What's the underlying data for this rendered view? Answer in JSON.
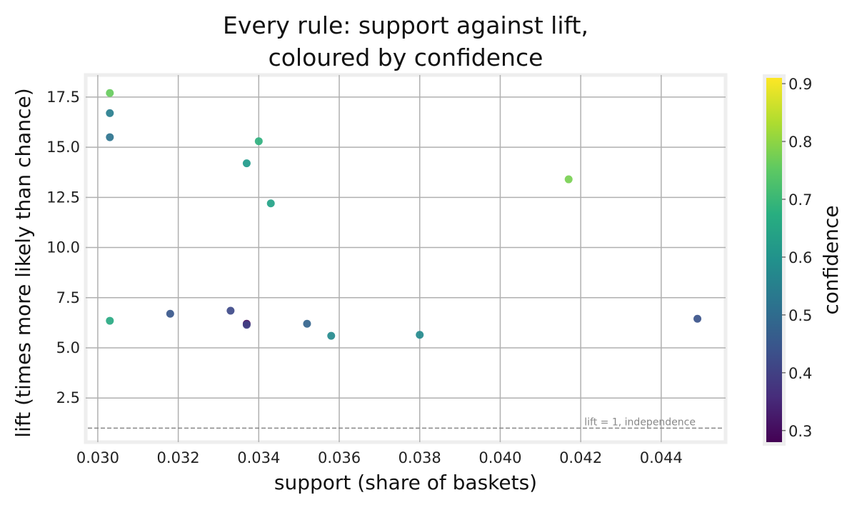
{
  "chart_data": {
    "type": "scatter",
    "title": [
      "Every rule: support against lift,",
      "coloured by confidence"
    ],
    "xlabel": "support (share of baskets)",
    "ylabel": "lift (times more likely than chance)",
    "xlim": [
      0.0297,
      0.0456
    ],
    "ylim": [
      0.3,
      18.6
    ],
    "xticks": [
      "0.030",
      "0.032",
      "0.034",
      "0.036",
      "0.038",
      "0.040",
      "0.042",
      "0.044"
    ],
    "yticks": [
      "2.5",
      "5.0",
      "7.5",
      "10.0",
      "12.5",
      "15.0",
      "17.5"
    ],
    "grid": true,
    "colorbar": {
      "label": "confidence",
      "range": [
        0.28,
        0.91
      ],
      "ticks": [
        "0.3",
        "0.4",
        "0.5",
        "0.6",
        "0.7",
        "0.8",
        "0.9"
      ],
      "colormap": "viridis"
    },
    "reference_line": {
      "y": 1.0,
      "style": "dashed",
      "label": "lift = 1, independence"
    },
    "points": [
      {
        "x": 0.0303,
        "y": 17.7,
        "confidence": 0.76
      },
      {
        "x": 0.0303,
        "y": 16.7,
        "confidence": 0.55
      },
      {
        "x": 0.0303,
        "y": 15.5,
        "confidence": 0.52
      },
      {
        "x": 0.0303,
        "y": 6.35,
        "confidence": 0.66
      },
      {
        "x": 0.0318,
        "y": 6.7,
        "confidence": 0.45
      },
      {
        "x": 0.0333,
        "y": 6.85,
        "confidence": 0.42
      },
      {
        "x": 0.0337,
        "y": 6.2,
        "confidence": 0.3
      },
      {
        "x": 0.0337,
        "y": 6.15,
        "confidence": 0.4
      },
      {
        "x": 0.0337,
        "y": 14.2,
        "confidence": 0.62
      },
      {
        "x": 0.034,
        "y": 15.3,
        "confidence": 0.68
      },
      {
        "x": 0.0343,
        "y": 12.2,
        "confidence": 0.64
      },
      {
        "x": 0.0352,
        "y": 6.2,
        "confidence": 0.48
      },
      {
        "x": 0.0358,
        "y": 5.6,
        "confidence": 0.58
      },
      {
        "x": 0.038,
        "y": 5.65,
        "confidence": 0.58
      },
      {
        "x": 0.0417,
        "y": 13.4,
        "confidence": 0.78
      },
      {
        "x": 0.0449,
        "y": 6.45,
        "confidence": 0.44
      }
    ]
  }
}
